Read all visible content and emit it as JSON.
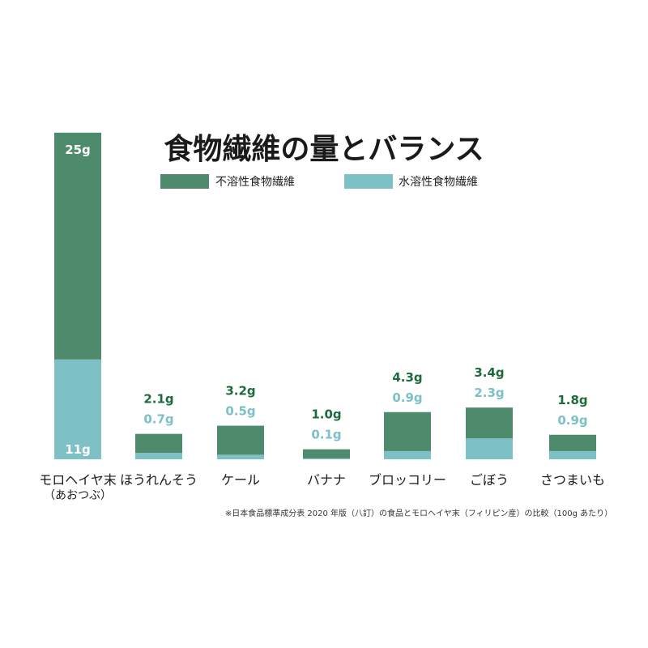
{
  "colors": {
    "insoluble": "#4e8a6c",
    "soluble": "#7dc0c6",
    "insoluble_text": "#1e6a3c",
    "soluble_text": "#7dc0c6"
  },
  "note": "※日本食品標準成分表 2020 年版（八訂）の食品とモロヘイヤ末（フィリピン産）の比較（100g あたり）",
  "chart_data": {
    "type": "bar",
    "stacked": true,
    "title": "食物繊維の量とバランス",
    "categories": [
      "モロヘイヤ末",
      "ほうれんそう",
      "ケール",
      "バナナ",
      "ブロッコリー",
      "ごぼう",
      "さつまいも"
    ],
    "category_sublabels": [
      "（あおつぶ）",
      "",
      "",
      "",
      "",
      "",
      ""
    ],
    "series": [
      {
        "name": "水溶性食物繊維",
        "values": [
          11,
          0.7,
          0.5,
          0.1,
          0.9,
          2.3,
          0.9
        ],
        "labels": [
          "11g",
          "0.7g",
          "0.5g",
          "0.1g",
          "0.9g",
          "2.3g",
          "0.9g"
        ]
      },
      {
        "name": "不溶性食物繊維",
        "values": [
          25,
          2.1,
          3.2,
          1.0,
          4.3,
          3.4,
          1.8
        ],
        "labels": [
          "25g",
          "2.1g",
          "3.2g",
          "1.0g",
          "4.3g",
          "3.4g",
          "1.8g"
        ]
      }
    ],
    "legend_position": "top",
    "grid": false
  }
}
